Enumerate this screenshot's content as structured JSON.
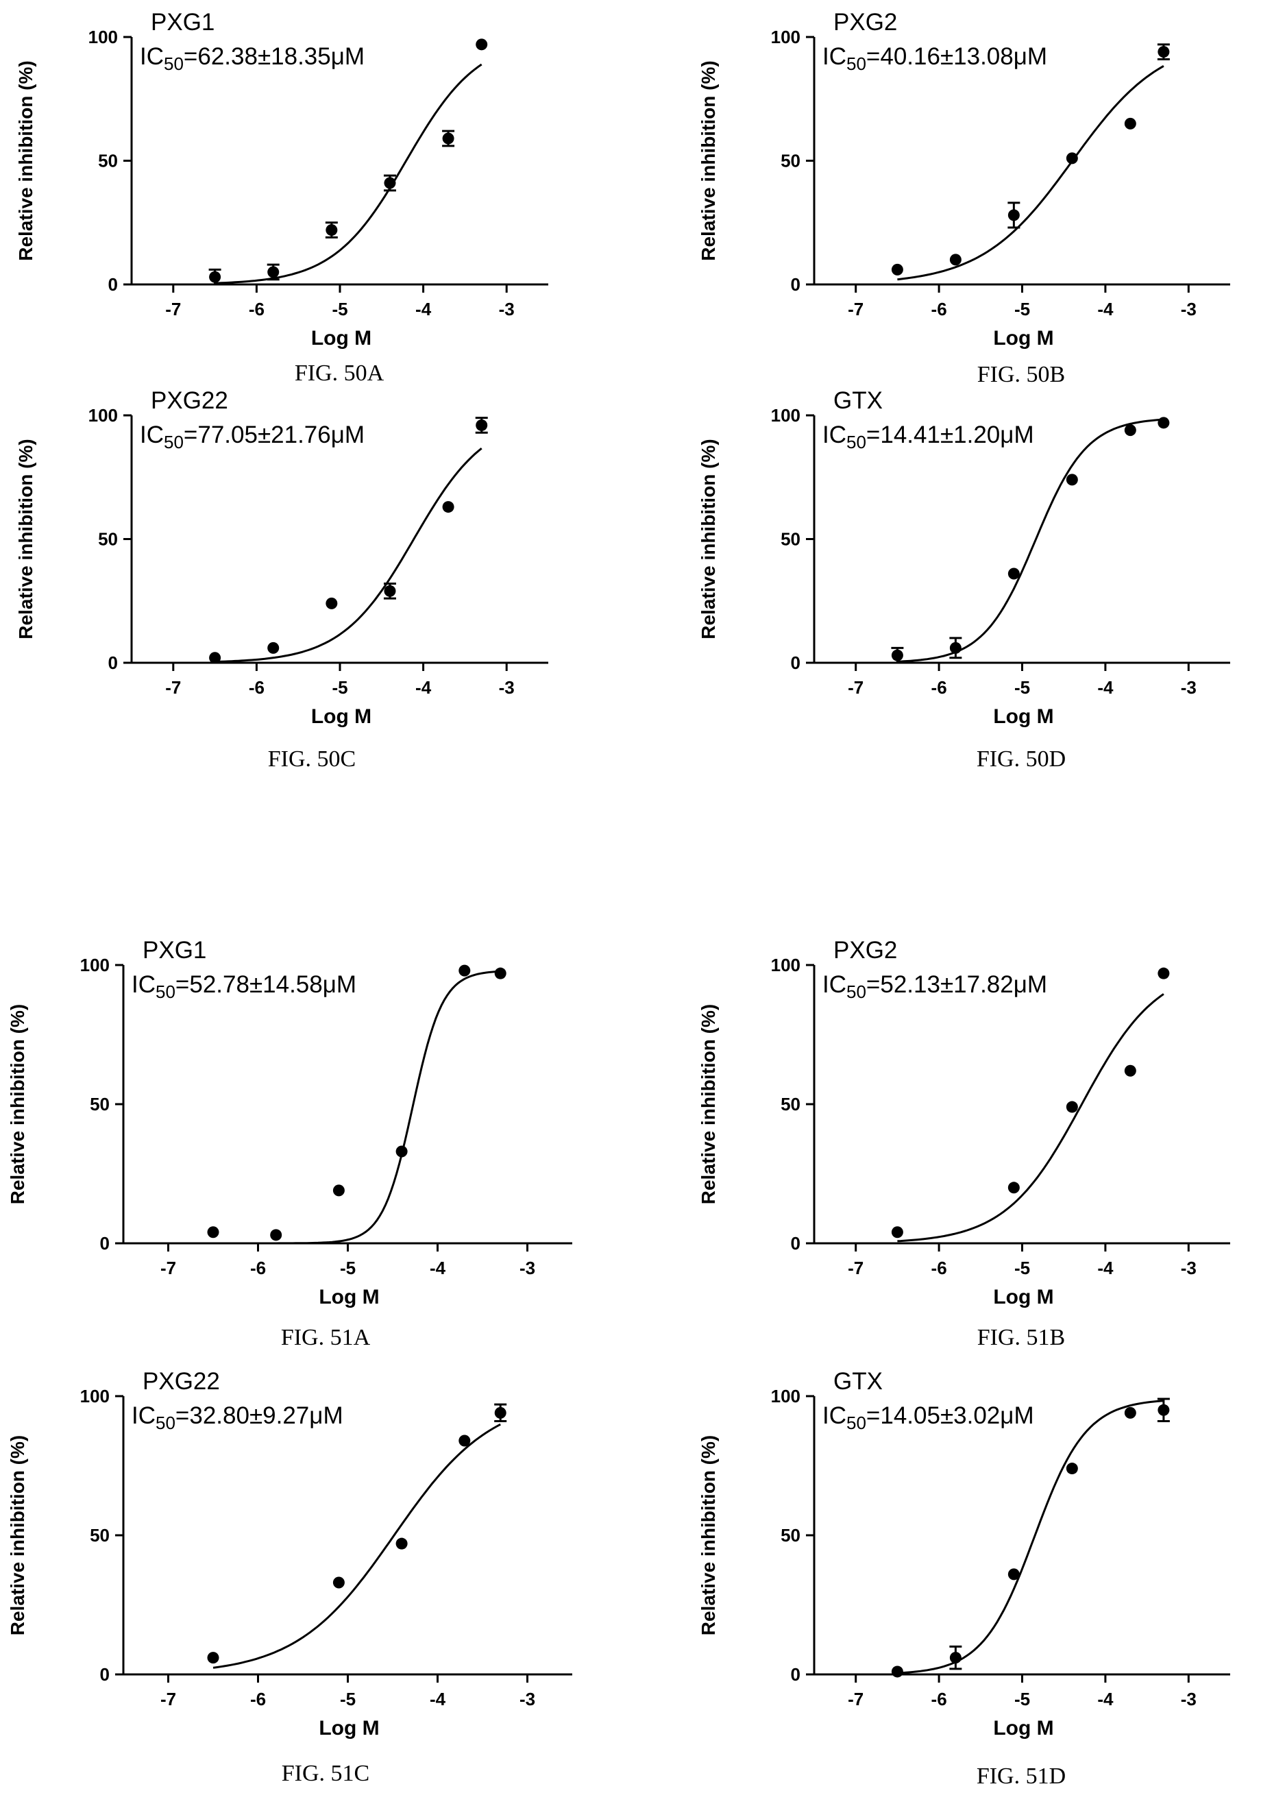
{
  "figure": {
    "ylabel": "Relative inhibition (%)",
    "xlabel": "Log M"
  },
  "chart_data": [
    {
      "type": "scatter",
      "panel_title": "PXG1",
      "ic50_prefix": "IC",
      "ic50_sub": "50",
      "ic50_value": "=62.38±18.35μM",
      "caption": "FIG. 50A",
      "xlabel": "Log M",
      "ylabel": "Relative inhibition (%)",
      "xlim": [
        -7.5,
        -2.5
      ],
      "ylim": [
        0,
        100
      ],
      "xticks": [
        -7,
        -6,
        -5,
        -4,
        -3
      ],
      "xtick_labels": [
        "-7",
        "-6",
        "-5",
        "-4",
        "-3"
      ],
      "yticks": [
        0,
        50,
        100
      ],
      "ytick_labels": [
        "0",
        "50",
        "100"
      ],
      "points": [
        {
          "x": -6.5,
          "y": 3,
          "err": 3
        },
        {
          "x": -5.8,
          "y": 5,
          "err": 3
        },
        {
          "x": -5.1,
          "y": 22,
          "err": 3
        },
        {
          "x": -4.4,
          "y": 41,
          "err": 3
        },
        {
          "x": -3.7,
          "y": 59,
          "err": 3
        },
        {
          "x": -3.3,
          "y": 97,
          "err": 0
        }
      ],
      "fit": {
        "logIC50": -4.205,
        "hill": 1.0,
        "bottom": 0,
        "top": 100,
        "x_range": [
          -6.5,
          -3.3
        ]
      }
    },
    {
      "type": "scatter",
      "panel_title": "PXG2",
      "ic50_prefix": "IC",
      "ic50_sub": "50",
      "ic50_value": "=40.16±13.08μM",
      "caption": "FIG. 50B",
      "xlabel": "Log M",
      "ylabel": "Relative inhibition (%)",
      "xlim": [
        -7.5,
        -2.5
      ],
      "ylim": [
        0,
        100
      ],
      "xticks": [
        -7,
        -6,
        -5,
        -4,
        -3
      ],
      "xtick_labels": [
        "-7",
        "-6",
        "-5",
        "-4",
        "-3"
      ],
      "yticks": [
        0,
        50,
        100
      ],
      "ytick_labels": [
        "0",
        "50",
        "100"
      ],
      "points": [
        {
          "x": -6.5,
          "y": 6,
          "err": 0
        },
        {
          "x": -5.8,
          "y": 10,
          "err": 0
        },
        {
          "x": -5.1,
          "y": 28,
          "err": 5
        },
        {
          "x": -4.4,
          "y": 51,
          "err": 0
        },
        {
          "x": -3.7,
          "y": 65,
          "err": 0
        },
        {
          "x": -3.3,
          "y": 94,
          "err": 3
        }
      ],
      "fit": {
        "logIC50": -4.396,
        "hill": 0.8,
        "bottom": 0,
        "top": 100,
        "x_range": [
          -6.5,
          -3.3
        ]
      }
    },
    {
      "type": "scatter",
      "panel_title": "PXG22",
      "ic50_prefix": "IC",
      "ic50_sub": "50",
      "ic50_value": "=77.05±21.76μM",
      "caption": "FIG. 50C",
      "xlabel": "Log M",
      "ylabel": "Relative inhibition (%)",
      "xlim": [
        -7.5,
        -2.5
      ],
      "ylim": [
        0,
        100
      ],
      "xticks": [
        -7,
        -6,
        -5,
        -4,
        -3
      ],
      "xtick_labels": [
        "-7",
        "-6",
        "-5",
        "-4",
        "-3"
      ],
      "yticks": [
        0,
        50,
        100
      ],
      "ytick_labels": [
        "0",
        "50",
        "100"
      ],
      "points": [
        {
          "x": -6.5,
          "y": 2,
          "err": 0
        },
        {
          "x": -5.8,
          "y": 6,
          "err": 0
        },
        {
          "x": -5.1,
          "y": 24,
          "err": 0
        },
        {
          "x": -4.4,
          "y": 29,
          "err": 3
        },
        {
          "x": -3.7,
          "y": 63,
          "err": 0
        },
        {
          "x": -3.3,
          "y": 96,
          "err": 3
        }
      ],
      "fit": {
        "logIC50": -4.113,
        "hill": 1.0,
        "bottom": 0,
        "top": 100,
        "x_range": [
          -6.5,
          -3.3
        ]
      }
    },
    {
      "type": "scatter",
      "panel_title": "GTX",
      "ic50_prefix": "IC",
      "ic50_sub": "50",
      "ic50_value": "=14.41±1.20μM",
      "caption": "FIG. 50D",
      "xlabel": "Log M",
      "ylabel": "Relative inhibition (%)",
      "xlim": [
        -7.5,
        -2.5
      ],
      "ylim": [
        0,
        100
      ],
      "xticks": [
        -7,
        -6,
        -5,
        -4,
        -3
      ],
      "xtick_labels": [
        "-7",
        "-6",
        "-5",
        "-4",
        "-3"
      ],
      "yticks": [
        0,
        50,
        100
      ],
      "ytick_labels": [
        "0",
        "50",
        "100"
      ],
      "points": [
        {
          "x": -6.5,
          "y": 3,
          "err": 3
        },
        {
          "x": -5.8,
          "y": 6,
          "err": 4
        },
        {
          "x": -5.1,
          "y": 36,
          "err": 0
        },
        {
          "x": -4.4,
          "y": 74,
          "err": 0
        },
        {
          "x": -3.7,
          "y": 94,
          "err": 0
        },
        {
          "x": -3.3,
          "y": 97,
          "err": 0
        }
      ],
      "fit": {
        "logIC50": -4.841,
        "hill": 1.4,
        "bottom": 0,
        "top": 99,
        "x_range": [
          -6.5,
          -3.3
        ]
      }
    },
    {
      "type": "scatter",
      "panel_title": "PXG1",
      "ic50_prefix": "IC",
      "ic50_sub": "50",
      "ic50_value": "=52.78±14.58μM",
      "caption": "FIG. 51A",
      "xlabel": "Log M",
      "ylabel": "Relative inhibition (%)",
      "xlim": [
        -7.5,
        -2.5
      ],
      "ylim": [
        0,
        100
      ],
      "xticks": [
        -7,
        -6,
        -5,
        -4,
        -3
      ],
      "xtick_labels": [
        "-7",
        "-6",
        "-5",
        "-4",
        "-3"
      ],
      "yticks": [
        0,
        50,
        100
      ],
      "ytick_labels": [
        "0",
        "50",
        "100"
      ],
      "points": [
        {
          "x": -6.5,
          "y": 4,
          "err": 0
        },
        {
          "x": -5.8,
          "y": 3,
          "err": 0
        },
        {
          "x": -5.1,
          "y": 19,
          "err": 0
        },
        {
          "x": -4.4,
          "y": 33,
          "err": 0
        },
        {
          "x": -3.7,
          "y": 98,
          "err": 0
        },
        {
          "x": -3.3,
          "y": 97,
          "err": 0
        }
      ],
      "fit": {
        "logIC50": -4.278,
        "hill": 2.6,
        "bottom": 0,
        "top": 98,
        "x_range": [
          -5.8,
          -3.3
        ]
      }
    },
    {
      "type": "scatter",
      "panel_title": "PXG2",
      "ic50_prefix": "IC",
      "ic50_sub": "50",
      "ic50_value": "=52.13±17.82μM",
      "caption": "FIG. 51B",
      "xlabel": "Log M",
      "ylabel": "Relative inhibition (%)",
      "xlim": [
        -7.5,
        -2.5
      ],
      "ylim": [
        0,
        100
      ],
      "xticks": [
        -7,
        -6,
        -5,
        -4,
        -3
      ],
      "xtick_labels": [
        "-7",
        "-6",
        "-5",
        "-4",
        "-3"
      ],
      "yticks": [
        0,
        50,
        100
      ],
      "ytick_labels": [
        "0",
        "50",
        "100"
      ],
      "points": [
        {
          "x": -6.5,
          "y": 4,
          "err": 0
        },
        {
          "x": -5.1,
          "y": 20,
          "err": 0
        },
        {
          "x": -4.4,
          "y": 49,
          "err": 0
        },
        {
          "x": -3.7,
          "y": 62,
          "err": 0
        },
        {
          "x": -3.3,
          "y": 97,
          "err": 0
        }
      ],
      "fit": {
        "logIC50": -4.283,
        "hill": 0.95,
        "bottom": 0,
        "top": 100,
        "x_range": [
          -6.5,
          -3.3
        ]
      }
    },
    {
      "type": "scatter",
      "panel_title": "PXG22",
      "ic50_prefix": "IC",
      "ic50_sub": "50",
      "ic50_value": "=32.80±9.27μM",
      "caption": "FIG. 51C",
      "xlabel": "Log M",
      "ylabel": "Relative inhibition (%)",
      "xlim": [
        -7.5,
        -2.5
      ],
      "ylim": [
        0,
        100
      ],
      "xticks": [
        -7,
        -6,
        -5,
        -4,
        -3
      ],
      "xtick_labels": [
        "-7",
        "-6",
        "-5",
        "-4",
        "-3"
      ],
      "yticks": [
        0,
        50,
        100
      ],
      "ytick_labels": [
        "0",
        "50",
        "100"
      ],
      "points": [
        {
          "x": -6.5,
          "y": 6,
          "err": 0
        },
        {
          "x": -5.1,
          "y": 33,
          "err": 0
        },
        {
          "x": -4.4,
          "y": 47,
          "err": 0
        },
        {
          "x": -3.7,
          "y": 84,
          "err": 0
        },
        {
          "x": -3.3,
          "y": 94,
          "err": 3
        }
      ],
      "fit": {
        "logIC50": -4.484,
        "hill": 0.8,
        "bottom": 0,
        "top": 100,
        "x_range": [
          -6.5,
          -3.3
        ]
      }
    },
    {
      "type": "scatter",
      "panel_title": "GTX",
      "ic50_prefix": "IC",
      "ic50_sub": "50",
      "ic50_value": "=14.05±3.02μM",
      "caption": "FIG. 51D",
      "xlabel": "Log M",
      "ylabel": "Relative inhibition (%)",
      "xlim": [
        -7.5,
        -2.5
      ],
      "ylim": [
        0,
        100
      ],
      "xticks": [
        -7,
        -6,
        -5,
        -4,
        -3
      ],
      "xtick_labels": [
        "-7",
        "-6",
        "-5",
        "-4",
        "-3"
      ],
      "yticks": [
        0,
        50,
        100
      ],
      "ytick_labels": [
        "0",
        "50",
        "100"
      ],
      "points": [
        {
          "x": -6.5,
          "y": 1,
          "err": 0
        },
        {
          "x": -5.8,
          "y": 6,
          "err": 4
        },
        {
          "x": -5.1,
          "y": 36,
          "err": 0
        },
        {
          "x": -4.4,
          "y": 74,
          "err": 0
        },
        {
          "x": -3.7,
          "y": 94,
          "err": 0
        },
        {
          "x": -3.3,
          "y": 95,
          "err": 4
        }
      ],
      "fit": {
        "logIC50": -4.852,
        "hill": 1.4,
        "bottom": 0,
        "top": 99,
        "x_range": [
          -6.5,
          -3.3
        ]
      }
    }
  ]
}
